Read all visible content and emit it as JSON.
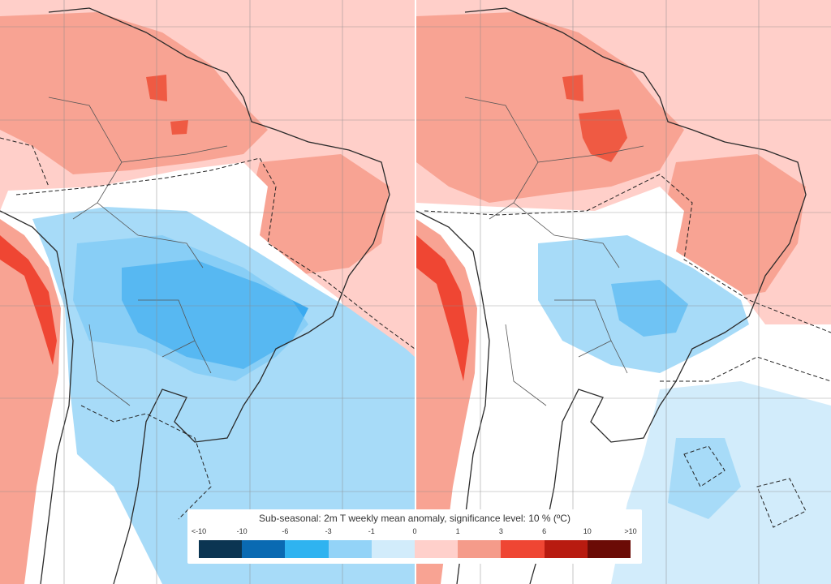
{
  "legend": {
    "title": "Sub-seasonal: 2m T weekly mean anomaly, significance level: 10 % (ºC)",
    "tick_labels": [
      "<-10",
      "-10",
      "-6",
      "-3",
      "-1",
      "0",
      "1",
      "3",
      "6",
      "10",
      ">10"
    ],
    "colors": [
      "#0b3552",
      "#0a6ab2",
      "#2fb3f0",
      "#93d3f7",
      "#d2ecfb",
      "#ffffff",
      "#ffd0cb",
      "#f59b8a",
      "#ef4633",
      "#b81b10",
      "#6b0b06"
    ]
  },
  "maps": [
    {
      "id": "week-left",
      "background": "#ffcfc9"
    },
    {
      "id": "week-right",
      "background": "#ffcfc9"
    }
  ]
}
